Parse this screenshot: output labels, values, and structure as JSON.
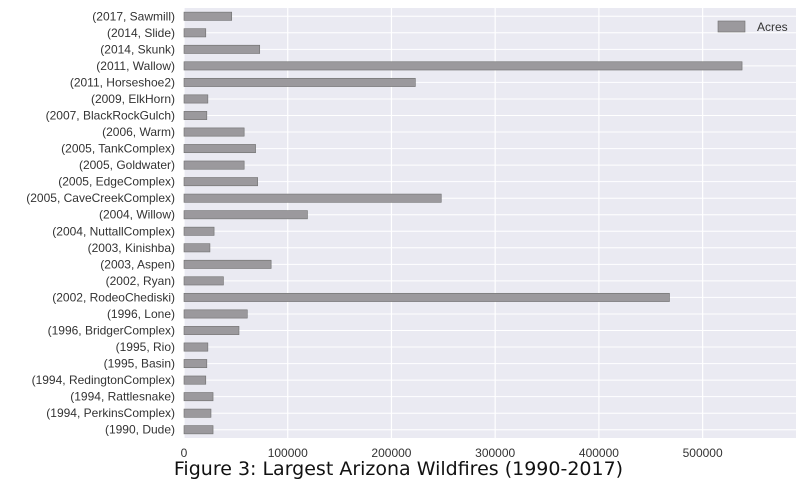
{
  "caption": "Figure 3: Largest Arizona Wildfires (1990-2017)",
  "chart_data": {
    "type": "bar",
    "orientation": "horizontal",
    "categories": [
      "(2017, Sawmill)",
      "(2014, Slide)",
      "(2014, Skunk)",
      "(2011, Wallow)",
      "(2011, Horseshoe2)",
      "(2009, ElkHorn)",
      "(2007, BlackRockGulch)",
      "(2006, Warm)",
      "(2005, TankComplex)",
      "(2005, Goldwater)",
      "(2005, EdgeComplex)",
      "(2005, CaveCreekComplex)",
      "(2004, Willow)",
      "(2004, NuttallComplex)",
      "(2003, Kinishba)",
      "(2003, Aspen)",
      "(2002, Ryan)",
      "(2002, RodeoChediski)",
      "(1996, Lone)",
      "(1996, BridgerComplex)",
      "(1995, Rio)",
      "(1995, Basin)",
      "(1994, RedingtonComplex)",
      "(1994, Rattlesnake)",
      "(1994, PerkinsComplex)",
      "(1990, Dude)"
    ],
    "series": [
      {
        "name": "Acres",
        "color": "#9b999d",
        "values": [
          46000,
          21000,
          73000,
          538000,
          223000,
          23000,
          22000,
          58000,
          69000,
          58000,
          71000,
          248000,
          119000,
          29000,
          25000,
          84000,
          38000,
          468000,
          61000,
          53000,
          23000,
          22000,
          21000,
          28000,
          26000,
          28000
        ]
      }
    ],
    "xlim": [
      0,
      590000
    ],
    "xticks": [
      0,
      100000,
      200000,
      300000,
      400000,
      500000
    ],
    "xtick_labels": [
      "0",
      "100000",
      "200000",
      "300000",
      "400000",
      "500000"
    ],
    "legend": "top-right",
    "grid": true,
    "background": "#eaeaf2"
  }
}
